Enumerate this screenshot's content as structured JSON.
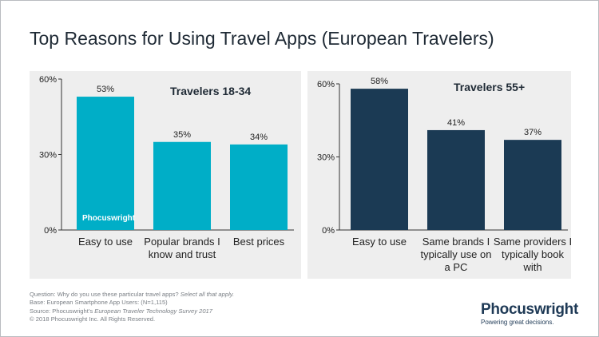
{
  "title": "Top Reasons for Using Travel Apps (European Travelers)",
  "chart_data": [
    {
      "type": "bar",
      "title": "Travelers 18-34",
      "categories": [
        "Easy to use",
        "Popular brands I know and trust",
        "Best prices"
      ],
      "category_lines": [
        [
          "Easy to use"
        ],
        [
          "Popular brands I",
          "know and trust"
        ],
        [
          "Best prices"
        ]
      ],
      "values": [
        53,
        35,
        34
      ],
      "value_labels": [
        "53%",
        "35%",
        "34%"
      ],
      "ylim": [
        0,
        60
      ],
      "yticks": [
        0,
        30,
        60
      ],
      "ytick_labels": [
        "0%",
        "30%",
        "60%"
      ],
      "color": "#00aec7",
      "watermark": "Phocuswright"
    },
    {
      "type": "bar",
      "title": "Travelers 55+",
      "categories": [
        "Easy to use",
        "Same brands I typically use on a PC",
        "Same providers I typically book with"
      ],
      "category_lines": [
        [
          "Easy to use"
        ],
        [
          "Same brands I",
          "typically use on",
          "a PC"
        ],
        [
          "Same providers I",
          "typically book",
          "with"
        ]
      ],
      "values": [
        58,
        41,
        37
      ],
      "value_labels": [
        "58%",
        "41%",
        "37%"
      ],
      "ylim": [
        0,
        60
      ],
      "yticks": [
        0,
        30,
        60
      ],
      "ytick_labels": [
        "0%",
        "30%",
        "60%"
      ],
      "color": "#1b3a54"
    }
  ],
  "footer": {
    "question": "Question: Why do you use these particular travel apps?",
    "question_note": "Select all that apply.",
    "base": "Base: European Smartphone App Users: (N=1,115)",
    "source_prefix": "Source: Phocuswright's",
    "source_title": "European Traveler Technology Survey 2017",
    "copyright": "© 2018 Phocuswright Inc. All Rights Reserved."
  },
  "brand": {
    "name": "Phocuswright",
    "tagline": "Powering great decisions."
  }
}
